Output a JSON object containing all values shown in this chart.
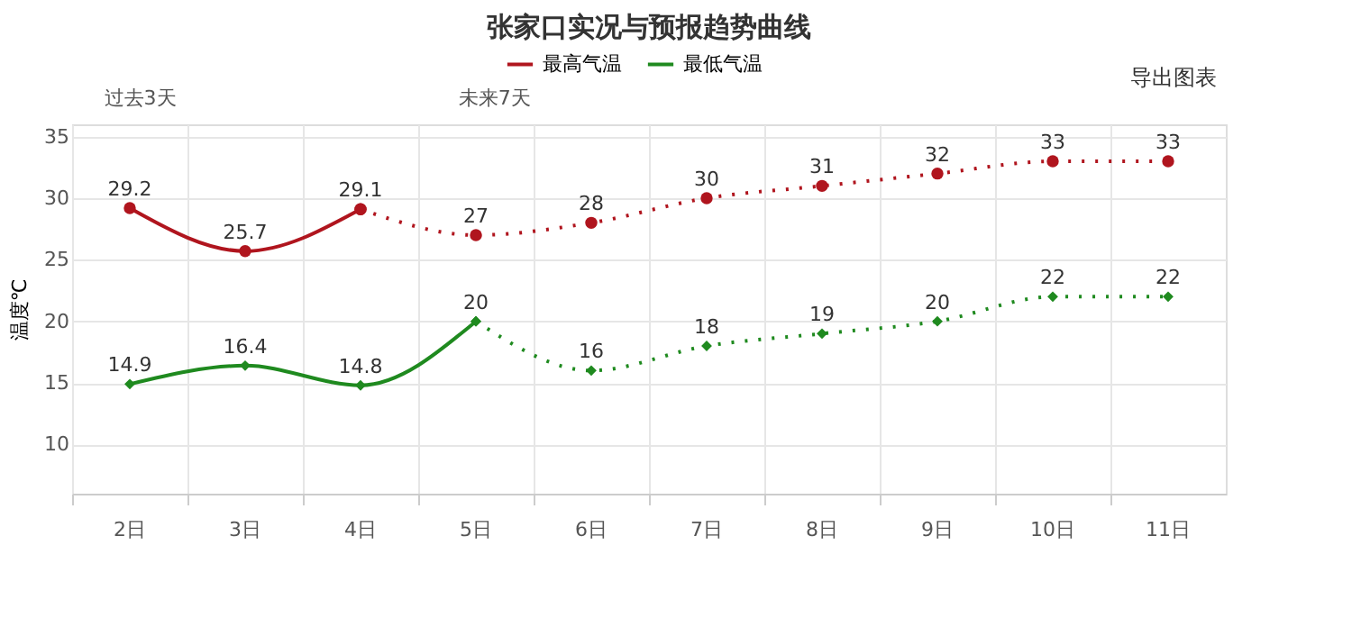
{
  "chart_data": {
    "type": "line",
    "title": "张家口实况与预报趋势曲线",
    "ylabel": "温度℃",
    "categories": [
      "2日",
      "3日",
      "4日",
      "5日",
      "6日",
      "7日",
      "8日",
      "9日",
      "10日",
      "11日"
    ],
    "series": [
      {
        "name": "最高气温",
        "color": "#b0151e",
        "line_style": "solid",
        "marker": "circle",
        "values": [
          29.2,
          25.7,
          29.1,
          null,
          null,
          null,
          null,
          null,
          null,
          null
        ],
        "value_labels": [
          "29.2",
          "25.7",
          "29.1",
          null,
          null,
          null,
          null,
          null,
          null,
          null
        ]
      },
      {
        "color": "#b0151e",
        "line_style": "dotted",
        "marker": "circle",
        "values": [
          null,
          null,
          29.1,
          27,
          28,
          30,
          31,
          32,
          33,
          33
        ],
        "value_labels": [
          null,
          null,
          null,
          "27",
          "28",
          "30",
          "31",
          "32",
          "33",
          "33"
        ]
      },
      {
        "name": "最低气温",
        "color": "#1f8a1f",
        "line_style": "solid",
        "marker": "diamond",
        "values": [
          14.9,
          16.4,
          14.8,
          20,
          null,
          null,
          null,
          null,
          null,
          null
        ],
        "value_labels": [
          "14.9",
          "16.4",
          "14.8",
          "20",
          null,
          null,
          null,
          null,
          null,
          null
        ]
      },
      {
        "color": "#1f8a1f",
        "line_style": "dotted",
        "marker": "diamond",
        "values": [
          null,
          null,
          null,
          20,
          16,
          18,
          19,
          20,
          22,
          22
        ],
        "value_labels": [
          null,
          null,
          null,
          null,
          "16",
          "18",
          "19",
          "20",
          "22",
          "22"
        ]
      }
    ],
    "ylim": [
      6,
      36
    ],
    "yticks": [
      10,
      15,
      20,
      25,
      30,
      35
    ],
    "grid": true,
    "legend": "top",
    "annotations": [
      "过去3天",
      "未来7天",
      "导出图表"
    ]
  }
}
